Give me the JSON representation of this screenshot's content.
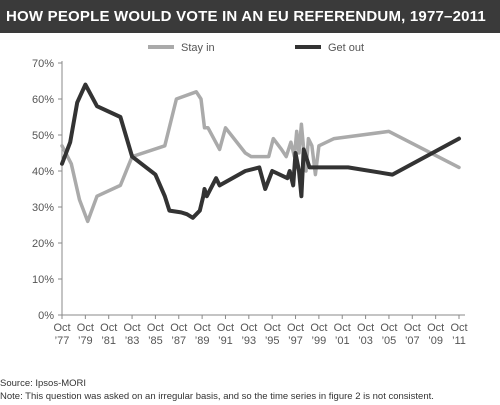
{
  "header": {
    "title": "HOW PEOPLE WOULD VOTE IN AN EU REFERENDUM, 1977–2011"
  },
  "footer": {
    "source": "Source: Ipsos-MORI",
    "note": "Note: This question was asked on an irregular basis, and so the time series in figure 2 is not consistent."
  },
  "chart_data": {
    "type": "line",
    "title": "HOW PEOPLE WOULD VOTE IN AN EU REFERENDUM, 1977–2011",
    "xlabel": "",
    "ylabel": "",
    "ylim": [
      0,
      70
    ],
    "xlim": [
      1977.8,
      2011.8
    ],
    "y_ticks": [
      "0%",
      "10%",
      "20%",
      "30%",
      "40%",
      "50%",
      "60%",
      "70%"
    ],
    "x_ticks": [
      {
        "top": "Oct",
        "bottom": "’77"
      },
      {
        "top": "Oct",
        "bottom": "’79"
      },
      {
        "top": "Oct",
        "bottom": "’81"
      },
      {
        "top": "Oct",
        "bottom": "’83"
      },
      {
        "top": "Oct",
        "bottom": "’85"
      },
      {
        "top": "Oct",
        "bottom": "’87"
      },
      {
        "top": "Oct",
        "bottom": "’89"
      },
      {
        "top": "Oct",
        "bottom": "’91"
      },
      {
        "top": "Oct",
        "bottom": "’93"
      },
      {
        "top": "Oct",
        "bottom": "’95"
      },
      {
        "top": "Oct",
        "bottom": "’97"
      },
      {
        "top": "Oct",
        "bottom": "’99"
      },
      {
        "top": "Oct",
        "bottom": "’01"
      },
      {
        "top": "Oct",
        "bottom": "’03"
      },
      {
        "top": "Oct",
        "bottom": "’05"
      },
      {
        "top": "Oct",
        "bottom": "’07"
      },
      {
        "top": "Oct",
        "bottom": "’09"
      },
      {
        "top": "Oct",
        "bottom": "’11"
      }
    ],
    "grid": false,
    "legend_position": "top",
    "series": [
      {
        "name": "Stay in",
        "color": "#aaaaaa",
        "points": [
          [
            1977.8,
            47
          ],
          [
            1978.6,
            42
          ],
          [
            1979.3,
            32
          ],
          [
            1980.0,
            26
          ],
          [
            1980.8,
            33
          ],
          [
            1982.8,
            36
          ],
          [
            1983.8,
            44
          ],
          [
            1986.6,
            47
          ],
          [
            1987.6,
            60
          ],
          [
            1989.3,
            62
          ],
          [
            1989.7,
            60
          ],
          [
            1990.0,
            52
          ],
          [
            1990.3,
            52
          ],
          [
            1991.3,
            46
          ],
          [
            1991.8,
            52
          ],
          [
            1993.5,
            45
          ],
          [
            1994.0,
            44
          ],
          [
            1994.3,
            44
          ],
          [
            1995.5,
            44
          ],
          [
            1995.9,
            49
          ],
          [
            1996.6,
            46
          ],
          [
            1997.0,
            44
          ],
          [
            1997.4,
            48
          ],
          [
            1997.7,
            44
          ],
          [
            1997.9,
            51
          ],
          [
            1998.1,
            45
          ],
          [
            1998.3,
            53
          ],
          [
            1998.5,
            46
          ],
          [
            1998.7,
            40
          ],
          [
            1998.9,
            49
          ],
          [
            1999.2,
            47
          ],
          [
            1999.5,
            39
          ],
          [
            1999.8,
            47
          ],
          [
            2001.1,
            49
          ],
          [
            2005.8,
            51
          ],
          [
            2011.8,
            41
          ]
        ]
      },
      {
        "name": "Get out",
        "color": "#333333",
        "points": [
          [
            1977.8,
            42
          ],
          [
            1978.5,
            48
          ],
          [
            1979.1,
            59
          ],
          [
            1979.8,
            64
          ],
          [
            1980.8,
            58
          ],
          [
            1982.8,
            55
          ],
          [
            1983.8,
            44
          ],
          [
            1985.8,
            39
          ],
          [
            1986.6,
            33
          ],
          [
            1987.0,
            29
          ],
          [
            1988.0,
            28.5
          ],
          [
            1988.5,
            28
          ],
          [
            1989.0,
            27
          ],
          [
            1989.6,
            29
          ],
          [
            1989.9,
            33
          ],
          [
            1990.0,
            35
          ],
          [
            1990.2,
            33
          ],
          [
            1991.0,
            38
          ],
          [
            1991.3,
            36
          ],
          [
            1993.5,
            40
          ],
          [
            1994.7,
            41
          ],
          [
            1995.2,
            35
          ],
          [
            1995.8,
            40
          ],
          [
            1997.1,
            38
          ],
          [
            1997.3,
            40
          ],
          [
            1997.6,
            36
          ],
          [
            1997.8,
            45
          ],
          [
            1998.1,
            40
          ],
          [
            1998.3,
            33
          ],
          [
            1998.5,
            46
          ],
          [
            1998.7,
            44
          ],
          [
            1999.0,
            41
          ],
          [
            2002.3,
            41
          ],
          [
            2006.1,
            39
          ],
          [
            2011.8,
            49
          ]
        ]
      }
    ]
  }
}
